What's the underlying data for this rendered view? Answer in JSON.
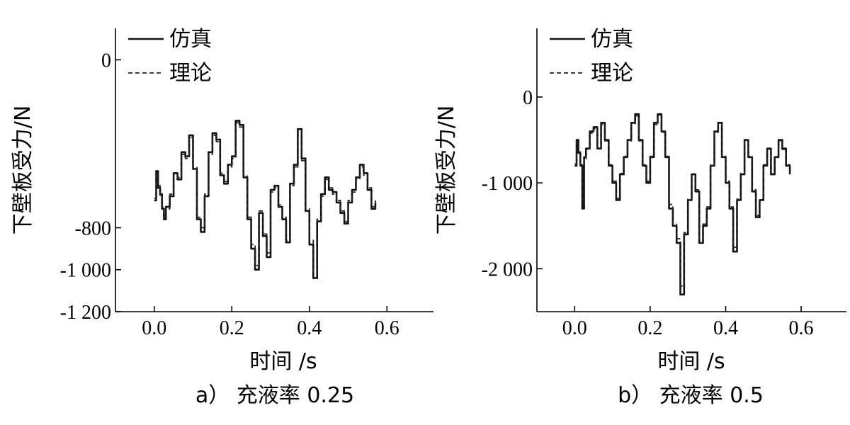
{
  "chart_data": [
    {
      "type": "line",
      "caption": "a）  充液率 0.25",
      "xlabel": "时间 /s",
      "ylabel": "下壁板受力/N",
      "xlim": [
        -0.1,
        0.72
      ],
      "ylim": [
        -1200,
        150
      ],
      "xticks": [
        0.0,
        0.2,
        0.4,
        0.6
      ],
      "xtick_labels": [
        "0.0",
        "0.2",
        "0.4",
        "0.6"
      ],
      "yticks": [
        0,
        -800,
        -1000,
        -1200
      ],
      "ytick_labels": [
        "0",
        "-800",
        "-1 000",
        "-1 200"
      ],
      "legend_position": "top-left",
      "series": [
        {
          "name": "仿真",
          "style": "solid",
          "x": [
            0.0,
            0.005,
            0.01,
            0.015,
            0.02,
            0.025,
            0.03,
            0.04,
            0.05,
            0.06,
            0.07,
            0.08,
            0.09,
            0.1,
            0.11,
            0.12,
            0.13,
            0.14,
            0.15,
            0.16,
            0.17,
            0.18,
            0.19,
            0.2,
            0.21,
            0.22,
            0.23,
            0.24,
            0.25,
            0.26,
            0.27,
            0.28,
            0.29,
            0.3,
            0.31,
            0.32,
            0.33,
            0.34,
            0.35,
            0.36,
            0.37,
            0.38,
            0.39,
            0.4,
            0.41,
            0.42,
            0.43,
            0.44,
            0.45,
            0.46,
            0.47,
            0.48,
            0.49,
            0.5,
            0.51,
            0.52,
            0.53,
            0.54,
            0.55,
            0.56,
            0.57
          ],
          "y": [
            -670,
            -530,
            -610,
            -640,
            -710,
            -760,
            -700,
            -650,
            -540,
            -570,
            -440,
            -460,
            -360,
            -520,
            -760,
            -820,
            -650,
            -440,
            -350,
            -380,
            -550,
            -590,
            -500,
            -460,
            -290,
            -310,
            -560,
            -760,
            -900,
            -1000,
            -730,
            -840,
            -940,
            -620,
            -600,
            -700,
            -760,
            -870,
            -590,
            -500,
            -330,
            -470,
            -720,
            -880,
            -1040,
            -770,
            -640,
            -560,
            -620,
            -630,
            -680,
            -730,
            -780,
            -680,
            -620,
            -560,
            -500,
            -540,
            -620,
            -710,
            -680
          ]
        },
        {
          "name": "理论",
          "style": "dashed",
          "x": [
            0.0,
            0.005,
            0.01,
            0.015,
            0.02,
            0.025,
            0.03,
            0.04,
            0.05,
            0.06,
            0.07,
            0.08,
            0.09,
            0.1,
            0.11,
            0.12,
            0.13,
            0.14,
            0.15,
            0.16,
            0.17,
            0.18,
            0.19,
            0.2,
            0.21,
            0.22,
            0.23,
            0.24,
            0.25,
            0.26,
            0.27,
            0.28,
            0.29,
            0.3,
            0.31,
            0.32,
            0.33,
            0.34,
            0.35,
            0.36,
            0.37,
            0.38,
            0.39,
            0.4,
            0.41,
            0.42,
            0.43,
            0.44,
            0.45,
            0.46,
            0.47,
            0.48,
            0.49,
            0.5,
            0.51,
            0.52,
            0.53,
            0.54,
            0.55,
            0.56,
            0.57
          ],
          "y": [
            -660,
            -540,
            -600,
            -650,
            -700,
            -750,
            -710,
            -640,
            -550,
            -560,
            -450,
            -470,
            -370,
            -510,
            -750,
            -800,
            -640,
            -450,
            -360,
            -390,
            -540,
            -580,
            -510,
            -470,
            -300,
            -320,
            -550,
            -750,
            -880,
            -980,
            -720,
            -830,
            -920,
            -630,
            -610,
            -690,
            -750,
            -860,
            -600,
            -510,
            -340,
            -480,
            -710,
            -860,
            -1010,
            -760,
            -650,
            -570,
            -610,
            -640,
            -670,
            -720,
            -770,
            -670,
            -630,
            -570,
            -510,
            -550,
            -610,
            -700,
            -670
          ]
        }
      ]
    },
    {
      "type": "line",
      "caption": "b）  充液率 0.5",
      "xlabel": "时间 /s",
      "ylabel": "下壁板受力/N",
      "xlim": [
        -0.1,
        0.72
      ],
      "ylim": [
        -2500,
        800
      ],
      "xticks": [
        0.0,
        0.2,
        0.4,
        0.6
      ],
      "xtick_labels": [
        "0.0",
        "0.2",
        "0.4",
        "0.6"
      ],
      "yticks": [
        0,
        -1000,
        -2000
      ],
      "ytick_labels": [
        "0",
        "-1 000",
        "-2 000"
      ],
      "legend_position": "top-left",
      "series": [
        {
          "name": "仿真",
          "style": "solid",
          "x": [
            0.0,
            0.005,
            0.01,
            0.015,
            0.02,
            0.025,
            0.03,
            0.04,
            0.05,
            0.06,
            0.07,
            0.08,
            0.09,
            0.1,
            0.11,
            0.12,
            0.13,
            0.14,
            0.15,
            0.16,
            0.17,
            0.18,
            0.19,
            0.2,
            0.21,
            0.22,
            0.23,
            0.24,
            0.25,
            0.26,
            0.27,
            0.28,
            0.29,
            0.3,
            0.31,
            0.32,
            0.33,
            0.34,
            0.35,
            0.36,
            0.37,
            0.38,
            0.39,
            0.4,
            0.41,
            0.42,
            0.43,
            0.44,
            0.45,
            0.46,
            0.47,
            0.48,
            0.49,
            0.5,
            0.51,
            0.52,
            0.53,
            0.54,
            0.55,
            0.56,
            0.57
          ],
          "y": [
            -800,
            -500,
            -650,
            -800,
            -1300,
            -700,
            -600,
            -400,
            -350,
            -600,
            -300,
            -500,
            -800,
            -1000,
            -1200,
            -900,
            -700,
            -500,
            -300,
            -200,
            -500,
            -800,
            -1000,
            -700,
            -300,
            -200,
            -400,
            -700,
            -1300,
            -1500,
            -1700,
            -2300,
            -1600,
            -1200,
            -900,
            -1100,
            -1700,
            -1500,
            -1300,
            -800,
            -400,
            -300,
            -700,
            -1000,
            -1300,
            -1800,
            -1200,
            -900,
            -500,
            -700,
            -1100,
            -1400,
            -1200,
            -800,
            -600,
            -900,
            -700,
            -500,
            -600,
            -800,
            -900
          ]
        },
        {
          "name": "理论",
          "style": "dashed",
          "x": [
            0.0,
            0.005,
            0.01,
            0.015,
            0.02,
            0.025,
            0.03,
            0.04,
            0.05,
            0.06,
            0.07,
            0.08,
            0.09,
            0.1,
            0.11,
            0.12,
            0.13,
            0.14,
            0.15,
            0.16,
            0.17,
            0.18,
            0.19,
            0.2,
            0.21,
            0.22,
            0.23,
            0.24,
            0.25,
            0.26,
            0.27,
            0.28,
            0.29,
            0.3,
            0.31,
            0.32,
            0.33,
            0.34,
            0.35,
            0.36,
            0.37,
            0.38,
            0.39,
            0.4,
            0.41,
            0.42,
            0.43,
            0.44,
            0.45,
            0.46,
            0.47,
            0.48,
            0.49,
            0.5,
            0.51,
            0.52,
            0.53,
            0.54,
            0.55,
            0.56,
            0.57
          ],
          "y": [
            -780,
            -520,
            -640,
            -790,
            -1250,
            -720,
            -610,
            -420,
            -370,
            -590,
            -320,
            -510,
            -790,
            -980,
            -1180,
            -890,
            -690,
            -510,
            -310,
            -220,
            -510,
            -790,
            -980,
            -690,
            -320,
            -210,
            -410,
            -690,
            -1250,
            -1480,
            -1650,
            -2200,
            -1580,
            -1190,
            -910,
            -1080,
            -1650,
            -1480,
            -1280,
            -790,
            -410,
            -310,
            -690,
            -980,
            -1280,
            -1750,
            -1190,
            -890,
            -510,
            -690,
            -1080,
            -1380,
            -1190,
            -790,
            -610,
            -890,
            -690,
            -510,
            -610,
            -790,
            -880
          ]
        }
      ]
    }
  ]
}
